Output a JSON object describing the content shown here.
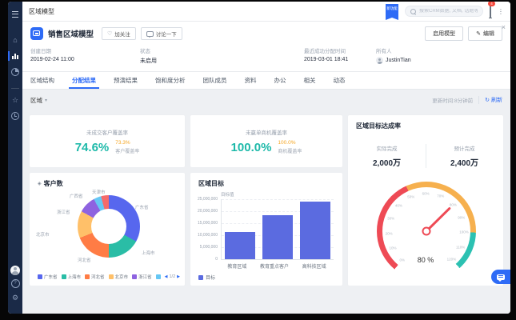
{
  "topbar": {
    "title": "区域模型",
    "ribbon": "新功能",
    "search_placeholder": "搜索CRM数据, 文档, 话题等",
    "bell_badge": "4"
  },
  "panel": {
    "title": "销售区域模型",
    "follow": "加关注",
    "discuss": "讨论一下",
    "enable": "启用模型",
    "edit": "编辑",
    "fields": [
      {
        "label": "创建日期",
        "value": "2019-02-24 11:00"
      },
      {
        "label": "状态",
        "value": "未启用"
      },
      {
        "label": "最近成功分配时间",
        "value": "2019-03-01 18:41"
      },
      {
        "label": "所有人",
        "value": "JustinTian"
      }
    ]
  },
  "tabs": [
    {
      "label": "区域结构"
    },
    {
      "label": "分配结果",
      "active": true
    },
    {
      "label": "预演结果"
    },
    {
      "label": "饱和度分析"
    },
    {
      "label": "团队成员"
    },
    {
      "label": "资料"
    },
    {
      "label": "办公"
    },
    {
      "label": "相关"
    },
    {
      "label": "动态"
    }
  ],
  "filter": {
    "region": "区域",
    "updated": "更新时间:8分钟前",
    "refresh": "刷新"
  },
  "kpi": [
    {
      "title": "未成交客户覆盖率",
      "value": "74.6%",
      "target": "73.3%",
      "target_label": "客户覆盖率"
    },
    {
      "title": "未赢单商机覆盖率",
      "value": "100.0%",
      "target": "100.0%",
      "target_label": "商机覆盖率"
    }
  ],
  "chart_data": [
    {
      "type": "pie",
      "title": "客户数",
      "slices": [
        {
          "label": "广东省",
          "value": 33,
          "color": "#5767ee"
        },
        {
          "label": "上海市",
          "value": 17,
          "color": "#2abda6"
        },
        {
          "label": "河北省",
          "value": 19,
          "color": "#ff7c45"
        },
        {
          "label": "北京市",
          "value": 14,
          "color": "#ffc069"
        },
        {
          "label": "浙江省",
          "value": 9,
          "color": "#8e63e0"
        },
        {
          "label": "广西省",
          "value": 4,
          "color": "#66c7f4"
        },
        {
          "label": "天津市",
          "value": 4,
          "color": "#f56a6a"
        }
      ],
      "legend_position": "bottom",
      "pager": {
        "prev": "◀",
        "page": "1/2",
        "next": "▶"
      }
    },
    {
      "type": "bar",
      "title": "区域目标",
      "ylabel": "目标值",
      "categories": [
        "教育区域",
        "教育重点客户",
        "高科技区域"
      ],
      "values": [
        11300000,
        18300000,
        24000000
      ],
      "ylim": [
        0,
        25000000
      ],
      "yticks": [
        "25,000,000",
        "20,000,000",
        "15,000,000",
        "10,000,000",
        "5,000,000",
        "0"
      ],
      "legend": [
        "目标"
      ],
      "bar_color": "#5b6be0",
      "grid": true
    },
    {
      "type": "gauge",
      "title": "区域目标达成率",
      "stats": [
        {
          "label": "实际完成",
          "value": "2,000万"
        },
        {
          "label": "预计完成",
          "value": "2,400万"
        }
      ],
      "min": 0,
      "max": 120,
      "tick_step": 10,
      "value_pct": 80,
      "display_value": "80 %",
      "segments": [
        {
          "from": 0,
          "to": 50,
          "color": "#ee4a55"
        },
        {
          "from": 50,
          "to": 100,
          "color": "#f6b04e"
        },
        {
          "from": 100,
          "to": 120,
          "color": "#2cc1b2"
        }
      ],
      "needle_color": "#ee4a55"
    }
  ],
  "icons": {
    "caret": "▾",
    "refresh": "↻",
    "pencil": "✎",
    "heart": "♡",
    "kebab": "⋮",
    "close": "×",
    "home": "⌂",
    "star": "☆",
    "gear": "⚙",
    "help": "?",
    "diamond": "◈"
  },
  "sidebar": {
    "icons": [
      "menu",
      "home",
      "bar-chart",
      "pie",
      "star",
      "clock",
      "avatar",
      "help",
      "gear"
    ]
  }
}
